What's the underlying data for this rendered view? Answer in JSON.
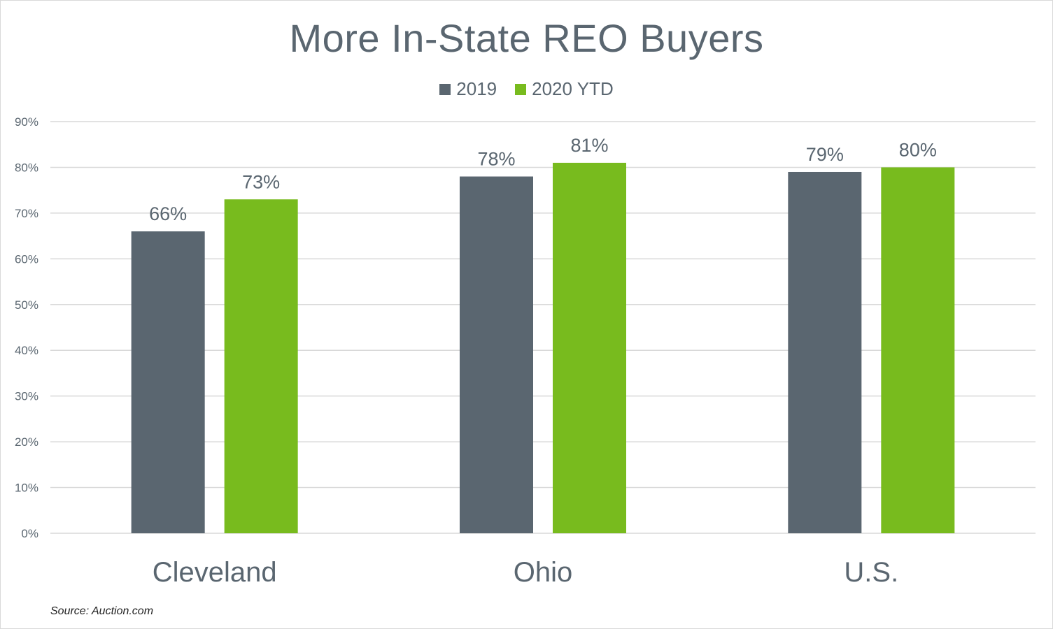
{
  "colors": {
    "series_2019": "#5a6670",
    "series_2020": "#78bb1e",
    "grid": "#d9d9d9",
    "text": "#5a6670"
  },
  "chart_data": {
    "type": "bar",
    "title": "More In-State REO Buyers",
    "categories": [
      "Cleveland",
      "Ohio",
      "U.S."
    ],
    "series": [
      {
        "name": "2019",
        "values": [
          66,
          78,
          79
        ],
        "labels": [
          "66%",
          "78%",
          "79%"
        ]
      },
      {
        "name": "2020 YTD",
        "values": [
          73,
          81,
          80
        ],
        "labels": [
          "73%",
          "81%",
          "80%"
        ]
      }
    ],
    "ylim": [
      0,
      90
    ],
    "yticks": [
      "0%",
      "10%",
      "20%",
      "30%",
      "40%",
      "50%",
      "60%",
      "70%",
      "80%",
      "90%"
    ],
    "grid": true,
    "legend": "top-center"
  },
  "source": "Source: Auction.com"
}
